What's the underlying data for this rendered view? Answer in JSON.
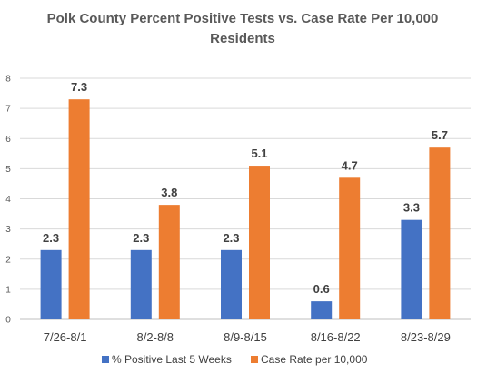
{
  "chart_data": {
    "type": "bar",
    "title": "Polk County Percent Positive Tests vs. Case Rate Per 10,000",
    "subtitle": "Residents",
    "categories": [
      "7/26-8/1",
      "8/2-8/8",
      "8/9-8/15",
      "8/16-8/22",
      "8/23-8/29"
    ],
    "series": [
      {
        "name": "% Positive Last 5 Weeks",
        "color": "#4472C4",
        "values": [
          2.3,
          2.3,
          2.3,
          0.6,
          3.3
        ]
      },
      {
        "name": "Case Rate per 10,000",
        "color": "#ED7D31",
        "values": [
          7.3,
          3.8,
          5.1,
          4.7,
          5.7
        ]
      }
    ],
    "ylim": [
      0,
      8
    ],
    "yticks": [
      0,
      1,
      2,
      3,
      4,
      5,
      6,
      7,
      8
    ],
    "grid": true,
    "legend": "bottom"
  }
}
